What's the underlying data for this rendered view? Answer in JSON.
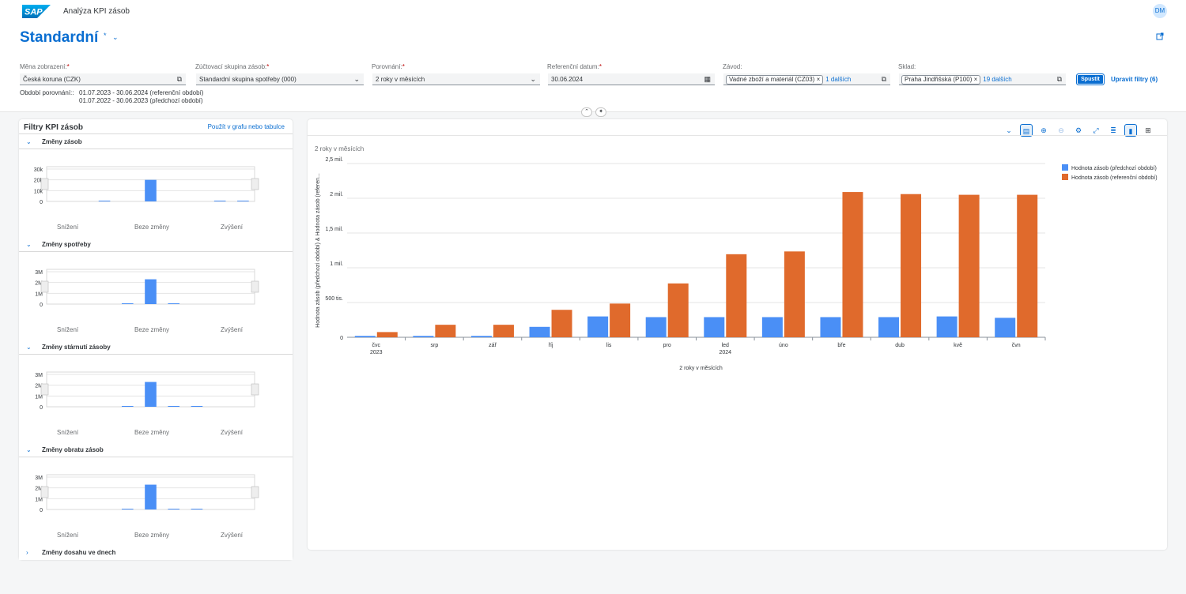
{
  "shell": {
    "logo_text": "SAP",
    "app_title": "Analýza KPI zásob",
    "avatar_initials": "DM"
  },
  "header": {
    "variant_name": "Standardní",
    "variant_modified_mark": "*",
    "filters": [
      {
        "label": "Měna zobrazení:",
        "required": true,
        "value": "Česká koruna (CZK)",
        "icon": "value-help-icon"
      },
      {
        "label": "Zúčtovací skupina zásob:",
        "required": true,
        "value": "Standardní skupina spotřeby (000)",
        "icon": "chevron-down-icon"
      },
      {
        "label": "Porovnání:",
        "required": true,
        "value": "2 roky v měsících",
        "icon": "chevron-down-icon"
      },
      {
        "label": "Referenční datum:",
        "required": true,
        "value": "30.06.2024",
        "icon": "calendar-icon"
      },
      {
        "label": "Závod:",
        "required": false,
        "token": "Vadné zboží a materiál (CZ03)",
        "more": "1 dalších",
        "icon": "value-help-icon"
      },
      {
        "label": "Sklad:",
        "required": false,
        "token": "Praha Jindřišská (P100)",
        "more": "19 dalších",
        "icon": "value-help-icon"
      }
    ],
    "go_button": "Spustit",
    "adapt_filters": "Upravit filtry (6)",
    "comparison_label": "Období porovnání::",
    "comparison_periods": [
      "01.07.2023 - 30.06.2024 (referenční období)",
      "01.07.2022 - 30.06.2023 (předchozí období)"
    ]
  },
  "left_panel": {
    "title": "Filtry KPI zásob",
    "apply_link": "Použít v grafu nebo tabulce",
    "sections": [
      {
        "title": "Změny zásob",
        "expanded": true,
        "y_ticks": [
          "30k",
          "20k",
          "10k",
          "0"
        ],
        "y_max": 30000,
        "categories": [
          "Snížení",
          "Beze změny",
          "Zvýšení"
        ],
        "bar_values": [
          0,
          0,
          500,
          0,
          20000,
          0,
          0,
          500,
          500
        ]
      },
      {
        "title": "Změny spotřeby",
        "expanded": true,
        "y_ticks": [
          "3M",
          "2M",
          "1M",
          "0"
        ],
        "y_max": 3000000,
        "categories": [
          "Snížení",
          "Beze změny",
          "Zvýšení"
        ],
        "bar_values": [
          0,
          0,
          0,
          50000,
          2300000,
          50000,
          0,
          0,
          0
        ]
      },
      {
        "title": "Změny stárnutí zásoby",
        "expanded": true,
        "y_ticks": [
          "3M",
          "2M",
          "1M",
          "0"
        ],
        "y_max": 3000000,
        "categories": [
          "Snížení",
          "Beze změny",
          "Zvýšení"
        ],
        "bar_values": [
          0,
          0,
          0,
          50000,
          2300000,
          50000,
          50000,
          0,
          0
        ]
      },
      {
        "title": "Změny obratu zásob",
        "expanded": true,
        "y_ticks": [
          "3M",
          "2M",
          "1M",
          "0"
        ],
        "y_max": 3000000,
        "categories": [
          "Snížení",
          "Beze změny",
          "Zvýšení"
        ],
        "bar_values": [
          0,
          0,
          0,
          50000,
          2300000,
          50000,
          50000,
          0,
          0
        ]
      },
      {
        "title": "Změny dosahu ve dnech",
        "expanded": false
      }
    ]
  },
  "toolbar": {
    "icons": [
      "double-chevron-down-icon",
      "table-icon",
      "zoom-in-icon",
      "zoom-out-icon",
      "settings-icon",
      "fullscreen-icon",
      "legend-icon",
      "column-chart-icon",
      "chart-table-toggle-icon"
    ]
  },
  "chart_title": "2 roky v měsících",
  "chart_data": {
    "type": "bar",
    "title": "2 roky v měsících",
    "xlabel": "2 roky v měsících",
    "ylabel": "Hodnota zásob (předchozí období) & Hodnota zásob (referen...",
    "categories": [
      "čvc",
      "srp",
      "zář",
      "říj",
      "lis",
      "pro",
      "led",
      "úno",
      "bře",
      "dub",
      "kvě",
      "čvn"
    ],
    "category_years": [
      "2023",
      "",
      "",
      "",
      "",
      "",
      "2024",
      "",
      "",
      "",
      "",
      ""
    ],
    "y_ticks": [
      "0",
      "500 tis.",
      "1 mil.",
      "1,5 mil.",
      "2 mil.",
      "2,5 mil."
    ],
    "ylim": [
      0,
      2500000
    ],
    "legend_position": "top-right",
    "grid": true,
    "series": [
      {
        "name": "Hodnota zásob (předchozí období)",
        "color": "#4a8ff6",
        "values": [
          20000,
          20000,
          20000,
          150000,
          300000,
          290000,
          290000,
          290000,
          290000,
          290000,
          300000,
          280000
        ]
      },
      {
        "name": "Hodnota zásob (referenční období)",
        "color": "#e06a2c",
        "values": [
          75000,
          180000,
          180000,
          395000,
          485000,
          775000,
          1195000,
          1235000,
          2090000,
          2060000,
          2050000,
          2050000
        ]
      }
    ]
  }
}
